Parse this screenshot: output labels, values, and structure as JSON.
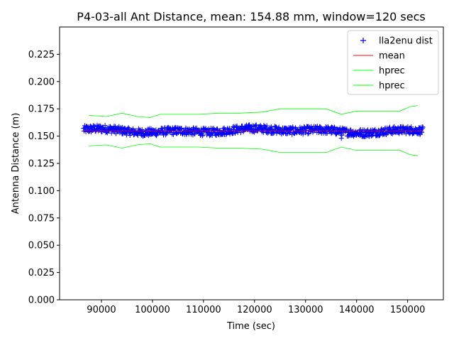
{
  "chart_data": {
    "type": "line",
    "title": "P4-03-all Ant Distance, mean: 154.88 mm, window=120 secs",
    "xlabel": "Time (sec)",
    "ylabel": "Antenna Distance (m)",
    "xlim": [
      81800,
      157000
    ],
    "ylim": [
      0.0,
      0.25
    ],
    "xticks": [
      90000,
      100000,
      110000,
      120000,
      130000,
      140000,
      150000
    ],
    "yticks": [
      0.0,
      0.025,
      0.05,
      0.075,
      0.1,
      0.125,
      0.15,
      0.175,
      0.2,
      0.225
    ],
    "xtick_labels": [
      "90000",
      "100000",
      "110000",
      "120000",
      "130000",
      "140000",
      "150000"
    ],
    "ytick_labels": [
      "0.000",
      "0.025",
      "0.050",
      "0.075",
      "0.100",
      "0.125",
      "0.150",
      "0.175",
      "0.200",
      "0.225"
    ],
    "grid": false,
    "legend_position": "top-right",
    "series": [
      {
        "name": "lla2enu dist",
        "style": "marker-plus",
        "color": "#0000ff",
        "x_range": [
          86500,
          153000
        ],
        "approx_value": 0.155,
        "approx_spread": 0.0035,
        "outliers": [
          {
            "x": 137000,
            "y": 0.148
          },
          {
            "x": 143800,
            "y": 0.151
          }
        ]
      },
      {
        "name": "mean",
        "style": "line",
        "color": "#ff0000",
        "x": [
          86500,
          153000
        ],
        "values": [
          0.15488,
          0.15488
        ]
      },
      {
        "name": "hprec",
        "style": "line",
        "color": "#00ff00",
        "x": [
          87500,
          91000,
          94000,
          97000,
          99500,
          101500,
          105000,
          109000,
          113000,
          117000,
          121500,
          125000,
          130000,
          134000,
          137000,
          140000,
          144000,
          148500,
          150500,
          152000
        ],
        "values": [
          0.169,
          0.168,
          0.171,
          0.168,
          0.167,
          0.17,
          0.17,
          0.17,
          0.171,
          0.171,
          0.172,
          0.175,
          0.175,
          0.175,
          0.17,
          0.173,
          0.173,
          0.173,
          0.177,
          0.178
        ]
      },
      {
        "name": "hprec",
        "style": "line",
        "color": "#00ff00",
        "x": [
          87500,
          91000,
          94000,
          97000,
          99500,
          101500,
          105000,
          109000,
          113000,
          117000,
          121500,
          125000,
          130000,
          134000,
          137000,
          140000,
          144000,
          148500,
          150500,
          152000
        ],
        "values": [
          0.141,
          0.142,
          0.139,
          0.142,
          0.143,
          0.14,
          0.14,
          0.14,
          0.139,
          0.139,
          0.138,
          0.135,
          0.135,
          0.135,
          0.14,
          0.137,
          0.137,
          0.137,
          0.133,
          0.132
        ]
      }
    ],
    "legend": [
      "lla2enu dist",
      "mean",
      "hprec",
      "hprec"
    ]
  }
}
